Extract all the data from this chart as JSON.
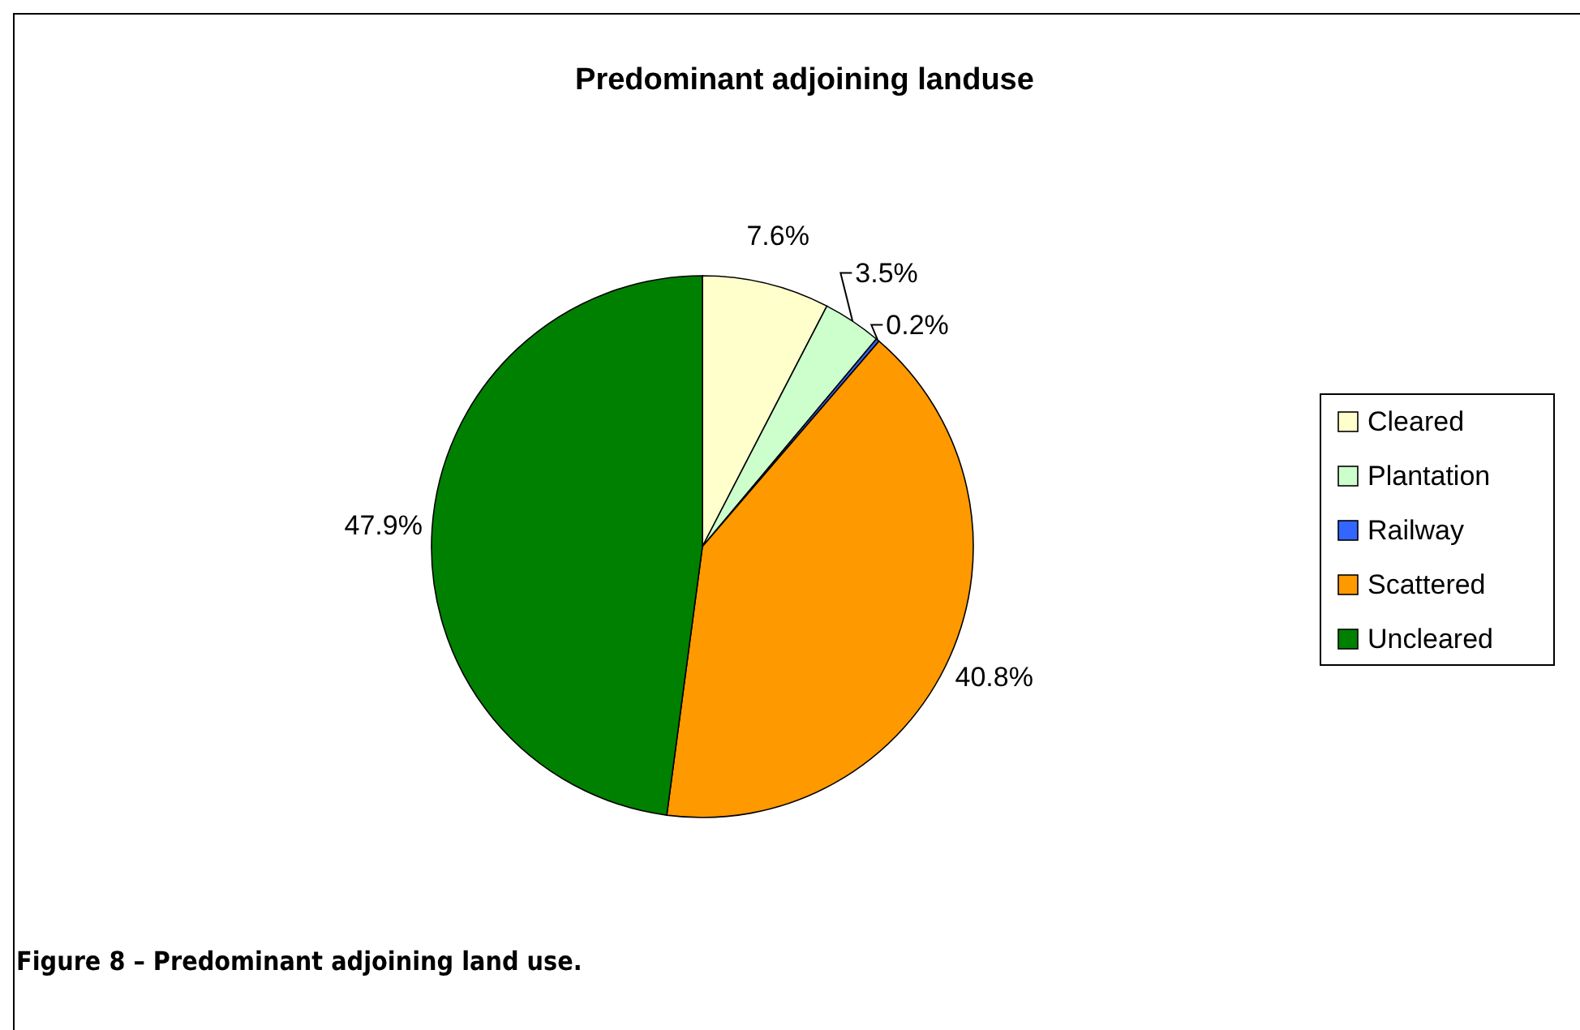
{
  "chart_data": {
    "type": "pie",
    "title": "Predominant adjoining landuse",
    "categories": [
      "Cleared",
      "Plantation",
      "Railway",
      "Scattered",
      "Uncleared"
    ],
    "values": [
      7.6,
      3.5,
      0.2,
      40.8,
      47.9
    ],
    "value_labels": [
      "7.6%",
      "3.5%",
      "0.2%",
      "40.8%",
      "47.9%"
    ],
    "colors": [
      "#ffffcc",
      "#ccffcc",
      "#3366ff",
      "#ff9900",
      "#008000"
    ],
    "legend": "right",
    "annotations": [
      "Figure 8 – Predominant adjoining land use."
    ]
  }
}
